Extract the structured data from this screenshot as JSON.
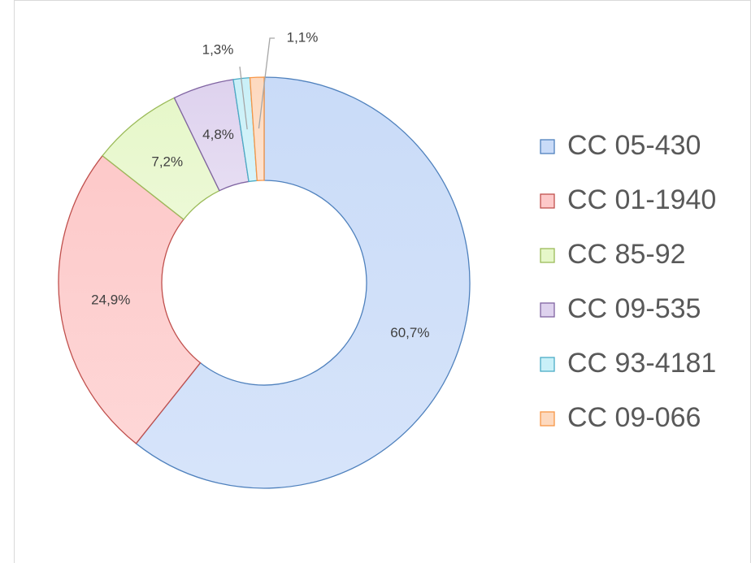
{
  "chart_data": {
    "type": "donut",
    "categories": [
      "CC 05-430",
      "CC 01-1940",
      "CC 85-92",
      "CC 09-535",
      "CC 93-4181",
      "CC 09-066"
    ],
    "values": [
      60.7,
      24.9,
      7.2,
      4.8,
      1.3,
      1.1
    ],
    "value_labels": [
      "60,7%",
      "24,9%",
      "7,2%",
      "4,8%",
      "1,3%",
      "1,1%"
    ],
    "colors": [
      "#c9dbf8",
      "#fdc9c9",
      "#e6f7c9",
      "#ded2ee",
      "#c9f0f8",
      "#fdd9bf"
    ],
    "edge_colors": [
      "#4f81bd",
      "#c0504d",
      "#9bbb59",
      "#8064a2",
      "#4bacc6",
      "#f79646"
    ],
    "legend": "right"
  }
}
